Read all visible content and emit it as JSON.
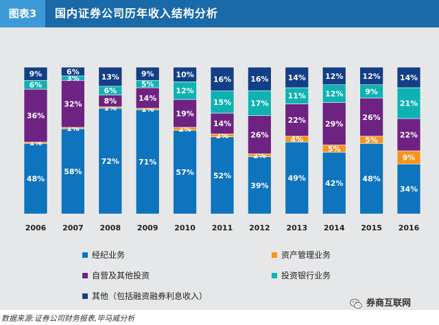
{
  "header": {
    "tag": "图表3",
    "title": "国内证券公司历年收入结构分析"
  },
  "colors": {
    "header_bg": "#1a6aaa",
    "tag_bg": "#3d9ad8",
    "panel_bg": "#e6e7e8"
  },
  "chart_data": {
    "type": "bar",
    "stacked": true,
    "percent": true,
    "categories": [
      "2006",
      "2007",
      "2008",
      "2009",
      "2010",
      "2011",
      "2012",
      "2013",
      "2014",
      "2015",
      "2016"
    ],
    "ylim": [
      0,
      100
    ],
    "grid": false,
    "legend_position": "bottom",
    "series": [
      {
        "name": "经纪业务",
        "color": "#0d74bd",
        "values": [
          48,
          58,
          72,
          71,
          57,
          52,
          39,
          49,
          42,
          48,
          34
        ]
      },
      {
        "name": "资产管理业务",
        "color": "#f7941d",
        "values": [
          1,
          1,
          1,
          1,
          2,
          2,
          2,
          4,
          5,
          5,
          9
        ]
      },
      {
        "name": "自营及其他投资",
        "color": "#6e2382",
        "values": [
          36,
          32,
          8,
          14,
          19,
          14,
          26,
          22,
          29,
          26,
          22
        ]
      },
      {
        "name": "投资银行业务",
        "color": "#0fb2b2",
        "values": [
          6,
          3,
          6,
          5,
          12,
          15,
          17,
          11,
          12,
          9,
          21
        ]
      },
      {
        "name": "其他（包括融资融券利息收入）",
        "color": "#123f86",
        "values": [
          9,
          6,
          13,
          9,
          10,
          16,
          16,
          14,
          12,
          12,
          14
        ]
      }
    ]
  },
  "source": "数据来源:证券公司财务报表,毕马威分析",
  "watermark": {
    "text": "券商互联网",
    "icon": "wechat-icon"
  }
}
